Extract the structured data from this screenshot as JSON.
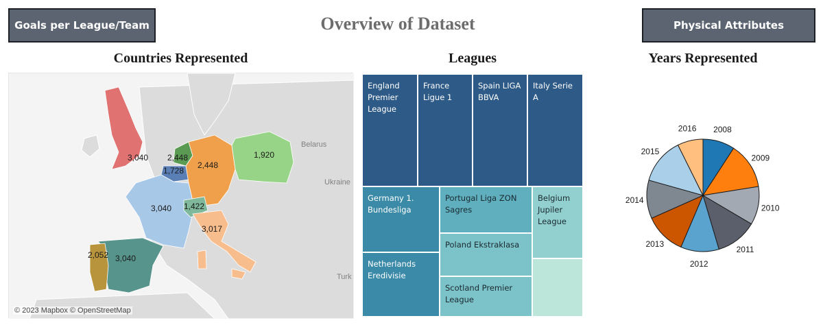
{
  "header": {
    "title": "Overview of Dataset",
    "left_button": "Goals per League/Team",
    "right_button": "Physical Attributes"
  },
  "map": {
    "title": "Countries Represented",
    "attribution": "© 2023 Mapbox © OpenStreetMap",
    "background_labels": [
      "Belarus",
      "Ukraine",
      "Turk"
    ],
    "countries": [
      {
        "name": "United Kingdom",
        "value": "3,040",
        "color": "#e07272"
      },
      {
        "name": "Netherlands",
        "value": "2,448",
        "color": "#5a9a52"
      },
      {
        "name": "Belgium",
        "value": "1,728",
        "color": "#5a7fb5"
      },
      {
        "name": "Germany",
        "value": "2,448",
        "color": "#f0a04b"
      },
      {
        "name": "Poland",
        "value": "1,920",
        "color": "#98d487"
      },
      {
        "name": "France",
        "value": "3,040",
        "color": "#a8c8e8"
      },
      {
        "name": "Switzerland",
        "value": "1,422",
        "color": "#7fb89a"
      },
      {
        "name": "Italy",
        "value": "3,017",
        "color": "#f8bd8c"
      },
      {
        "name": "Portugal",
        "value": "2,052",
        "color": "#b8953c"
      },
      {
        "name": "Spain",
        "value": "3,040",
        "color": "#57948c"
      }
    ]
  },
  "leagues": {
    "title": "Leagues",
    "tiles": [
      {
        "label": "England Premier League",
        "color": "#2e5a87"
      },
      {
        "label": "France Ligue 1",
        "color": "#2e5a87"
      },
      {
        "label": "Spain LIGA BBVA",
        "color": "#2e5a87"
      },
      {
        "label": "Italy Serie A",
        "color": "#2e5a87"
      },
      {
        "label": "Germany 1. Bundesliga",
        "color": "#3b8aa8"
      },
      {
        "label": "Netherlands Eredivisie",
        "color": "#3b8aa8"
      },
      {
        "label": "Portugal Liga ZON Sagres",
        "color": "#5fafbe"
      },
      {
        "label": "Poland Ekstraklasa",
        "color": "#7cc2c9"
      },
      {
        "label": "Scotland Premier League",
        "color": "#7cc2c9"
      },
      {
        "label": "Belgium Jupiler League",
        "color": "#92d0cf"
      },
      {
        "label": "",
        "color": "#bde6db"
      }
    ]
  },
  "years": {
    "title": "Years Represented"
  },
  "chart_data": {
    "type": "pie",
    "title": "Years Represented",
    "categories": [
      "2008",
      "2009",
      "2010",
      "2011",
      "2012",
      "2013",
      "2014",
      "2015",
      "2016"
    ],
    "values": [
      1.0,
      1.45,
      1.2,
      1.3,
      1.2,
      1.3,
      1.2,
      1.45,
      0.8
    ],
    "colors": [
      "#1f77b4",
      "#ff7f0e",
      "#a2a9b3",
      "#5a5f6b",
      "#5ba3cf",
      "#cc5500",
      "#7f8791",
      "#a9cfe9",
      "#ffbf7f"
    ]
  }
}
